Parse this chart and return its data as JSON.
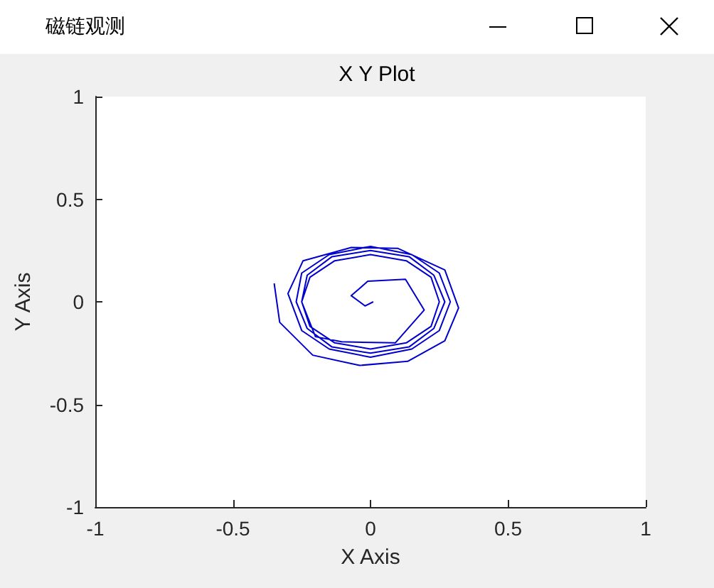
{
  "chart_data": {
    "type": "line",
    "title": "X Y Plot",
    "xlabel": "X Axis",
    "ylabel": "Y Axis",
    "annotations": [
      "磁链观测"
    ],
    "xlim": [
      -1,
      1
    ],
    "ylim": [
      -1,
      1
    ],
    "xticks": [
      -1,
      -0.5,
      0,
      0.5,
      1
    ],
    "yticks": [
      -1,
      -0.5,
      0,
      0.5,
      1
    ],
    "grid": false,
    "marker": "none",
    "line_style": "solid",
    "series": [
      {
        "color": "#0000cc",
        "x": [
          0.01,
          -0.02,
          -0.045,
          -0.07,
          -0.04,
          -0.01,
          0.127,
          0.195,
          0.09,
          -0.105,
          -0.2,
          -0.25,
          -0.22,
          -0.13,
          0,
          0.13,
          0.22,
          0.25,
          0.22,
          0.13,
          0,
          -0.13,
          -0.22,
          -0.25,
          -0.23,
          -0.14,
          0,
          0.14,
          0.23,
          0.27,
          0.23,
          0.14,
          0,
          -0.14,
          -0.23,
          -0.27,
          -0.25,
          -0.15,
          0,
          0.15,
          0.25,
          0.29,
          0.25,
          0.15,
          0,
          -0.15,
          -0.25,
          -0.3,
          -0.245,
          -0.07,
          0.1,
          0.27,
          0.32,
          0.27,
          0.135,
          -0.04,
          -0.21,
          -0.33,
          -0.35
        ],
        "values": [
          0,
          -0.02,
          0.005,
          0.03,
          0.065,
          0.1,
          0.11,
          -0.04,
          -0.2,
          -0.195,
          -0.17,
          0,
          0.12,
          0.2,
          0.23,
          0.2,
          0.12,
          0,
          -0.12,
          -0.2,
          -0.23,
          -0.2,
          -0.12,
          0,
          0.13,
          0.22,
          0.25,
          0.22,
          0.13,
          0,
          -0.13,
          -0.22,
          -0.25,
          -0.22,
          -0.13,
          0,
          0.14,
          0.23,
          0.27,
          0.23,
          0.14,
          0,
          -0.14,
          -0.23,
          -0.27,
          -0.23,
          -0.14,
          0.04,
          0.2,
          0.265,
          0.26,
          0.155,
          -0.03,
          -0.19,
          -0.29,
          -0.31,
          -0.26,
          -0.1,
          0.09
        ]
      }
    ]
  }
}
